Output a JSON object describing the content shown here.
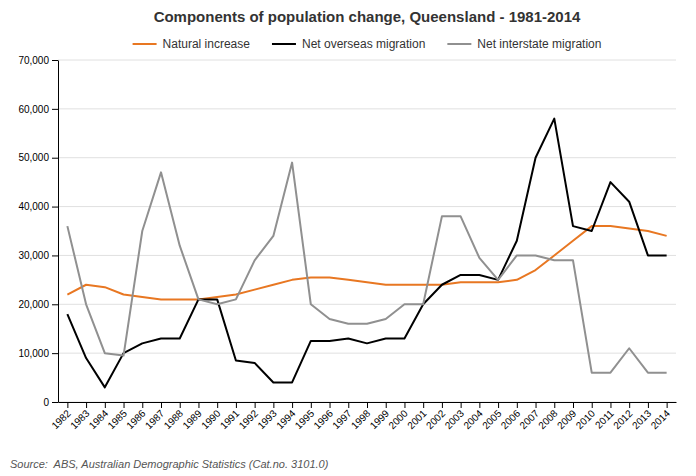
{
  "chart_data": {
    "type": "line",
    "title": "Components of population change, Queensland - 1981-2014",
    "annotations": [
      "Source:  ABS, Australian Demographic Statistics (Cat.no. 3101.0)"
    ],
    "x": [
      1982,
      1983,
      1984,
      1985,
      1986,
      1987,
      1988,
      1989,
      1990,
      1991,
      1992,
      1993,
      1994,
      1995,
      1996,
      1997,
      1998,
      1999,
      2000,
      2001,
      2002,
      2003,
      2004,
      2005,
      2006,
      2007,
      2008,
      2009,
      2010,
      2011,
      2012,
      2013,
      2014
    ],
    "series": [
      {
        "name": "Natural increase",
        "color": "#E87722",
        "values": [
          22000,
          24000,
          23500,
          22000,
          21500,
          21000,
          21000,
          21000,
          21500,
          22000,
          23000,
          24000,
          25000,
          25500,
          25500,
          25000,
          24500,
          24000,
          24000,
          24000,
          24000,
          24500,
          24500,
          24500,
          25000,
          27000,
          30000,
          33000,
          36000,
          36000,
          35500,
          35000,
          34000
        ]
      },
      {
        "name": "Net overseas migration",
        "color": "#000000",
        "values": [
          18000,
          9000,
          3000,
          10000,
          12000,
          13000,
          13000,
          21000,
          21000,
          8500,
          8000,
          4000,
          4000,
          12500,
          12500,
          13000,
          12000,
          13000,
          13000,
          20000,
          24000,
          26000,
          26000,
          25000,
          33000,
          50000,
          58000,
          36000,
          35000,
          45000,
          41000,
          30000,
          30000
        ]
      },
      {
        "name": "Net interstate migration",
        "color": "#909090",
        "values": [
          36000,
          20000,
          10000,
          9500,
          35000,
          47000,
          32000,
          21000,
          20000,
          21000,
          29000,
          34000,
          49000,
          20000,
          17000,
          16000,
          16000,
          17000,
          20000,
          20000,
          38000,
          38000,
          29500,
          25000,
          30000,
          30000,
          29000,
          29000,
          6000,
          6000,
          11000,
          6000,
          6000
        ]
      }
    ],
    "xlim": [
      1981.5,
      2014.5
    ],
    "xticks": [
      1982,
      1983,
      1984,
      1985,
      1986,
      1987,
      1988,
      1989,
      1990,
      1991,
      1992,
      1993,
      1994,
      1995,
      1996,
      1997,
      1998,
      1999,
      2000,
      2001,
      2002,
      2003,
      2004,
      2005,
      2006,
      2007,
      2008,
      2009,
      2010,
      2011,
      2012,
      2013,
      2014
    ],
    "ylim": [
      0,
      70000
    ],
    "yticks": [
      0,
      {
        "value": 10000,
        "label": "10,000"
      },
      {
        "value": 20000,
        "label": "20,000"
      },
      {
        "value": 30000,
        "label": "30,000"
      },
      {
        "value": 40000,
        "label": "40,000"
      },
      {
        "value": 50000,
        "label": "50,000"
      },
      {
        "value": 60000,
        "label": "60,000"
      },
      {
        "value": 70000,
        "label": "70,000"
      }
    ],
    "grid": true,
    "legend": "upper center"
  }
}
